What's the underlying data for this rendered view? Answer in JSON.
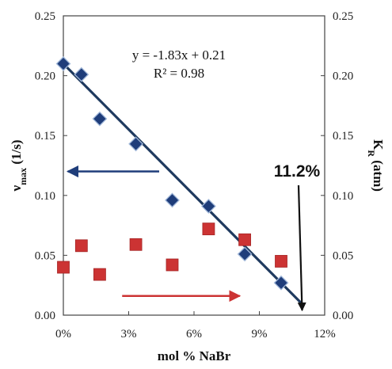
{
  "chart_data": {
    "type": "scatter",
    "xlabel": "mol % NaBr",
    "ylabel_left": {
      "main": "ν",
      "sub": "max",
      "tail": " (1/s)"
    },
    "ylabel_right": {
      "main": "K",
      "sub": "R",
      "tail": " (atm)"
    },
    "xlim": [
      0,
      12
    ],
    "ylim": [
      0,
      0.25
    ],
    "x_ticks": [
      0,
      3,
      6,
      9,
      12
    ],
    "x_tick_labels": [
      "0%",
      "3%",
      "6%",
      "9%",
      "12%"
    ],
    "y_ticks": [
      0,
      0.05,
      0.1,
      0.15,
      0.2,
      0.25
    ],
    "y_tick_labels": [
      "0.00",
      "0.05",
      "0.10",
      "0.15",
      "0.20",
      "0.25"
    ],
    "y2_tick_labels": [
      "0.00",
      "0.05",
      "0.10",
      "0.15",
      "0.20",
      "0.25"
    ],
    "grid": false,
    "series": [
      {
        "marker": "diamond",
        "color": "#1f3d7a",
        "axis": "left",
        "x": [
          0,
          0.83,
          1.67,
          3.33,
          5.0,
          6.67,
          8.33,
          10.0
        ],
        "values": [
          0.21,
          0.201,
          0.164,
          0.143,
          0.096,
          0.091,
          0.051,
          0.027
        ]
      },
      {
        "marker": "square",
        "color": "#cc3333",
        "axis": "right",
        "x": [
          0,
          0.83,
          1.67,
          3.33,
          5.0,
          6.67,
          8.33,
          10.0
        ],
        "values": [
          0.04,
          0.058,
          0.034,
          0.059,
          0.042,
          0.072,
          0.063,
          0.045
        ]
      }
    ],
    "trendline": {
      "slope": -1.83,
      "intercept": 0.21,
      "x_range": [
        0,
        11.0
      ],
      "color": "#1f3a5f",
      "equation": "y = -1.83x + 0.21",
      "r_squared": "R² = 0.98"
    },
    "annotations": {
      "intercept_label": "11.2%",
      "intercept_x": 11.0,
      "left_arrow": {
        "from": [
          4.4,
          0.12
        ],
        "to": [
          0.2,
          0.12
        ],
        "color": "#1f3d7a"
      },
      "right_arrow": {
        "from": [
          2.7,
          0.016
        ],
        "to": [
          8.1,
          0.016
        ],
        "color": "#cc3333"
      }
    }
  }
}
